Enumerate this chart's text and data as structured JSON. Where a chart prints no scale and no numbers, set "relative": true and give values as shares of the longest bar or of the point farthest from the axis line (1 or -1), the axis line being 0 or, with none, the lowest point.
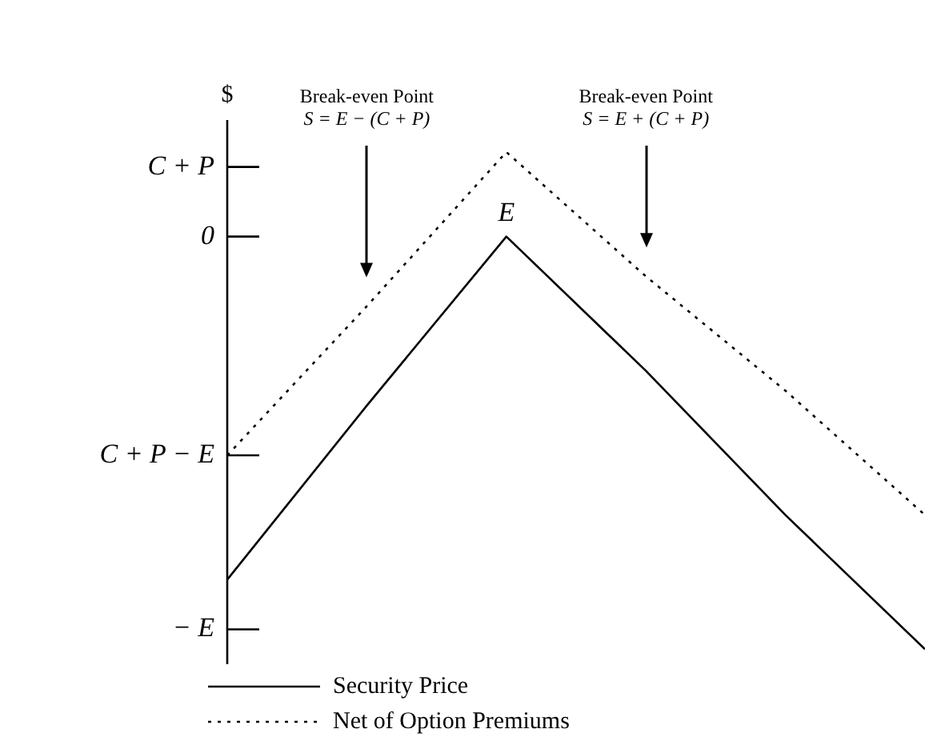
{
  "chart_data": {
    "type": "line",
    "relative": true,
    "ylabel": "$",
    "categories": [
      null,
      null,
      null,
      null,
      null,
      null
    ],
    "series": [
      {
        "name": "Security Price",
        "color": "#000000",
        "line_style": "solid",
        "values": [
          0.14,
          0.49,
          0.83,
          0.56,
          0.27,
          0
        ]
      },
      {
        "name": "Net of Option Premiums",
        "color": "#000000",
        "line_style": "dotted",
        "values": [
          0.39,
          0.69,
          1,
          0.75,
          0.52,
          0.27
        ]
      }
    ],
    "annotations": [
      "Break-even Point\nS = E − (C + P)",
      "Break-even Point\nS = E + (C + P)",
      "0",
      "E"
    ],
    "ref_lines": [
      {
        "axis": "y",
        "value": 0.97,
        "label": "C + P"
      },
      {
        "axis": "y",
        "value": 0.39,
        "label": "C + P − E"
      },
      {
        "axis": "y",
        "value": 0.04,
        "label": "− E"
      }
    ],
    "marker": "none",
    "legend": "bottom"
  }
}
